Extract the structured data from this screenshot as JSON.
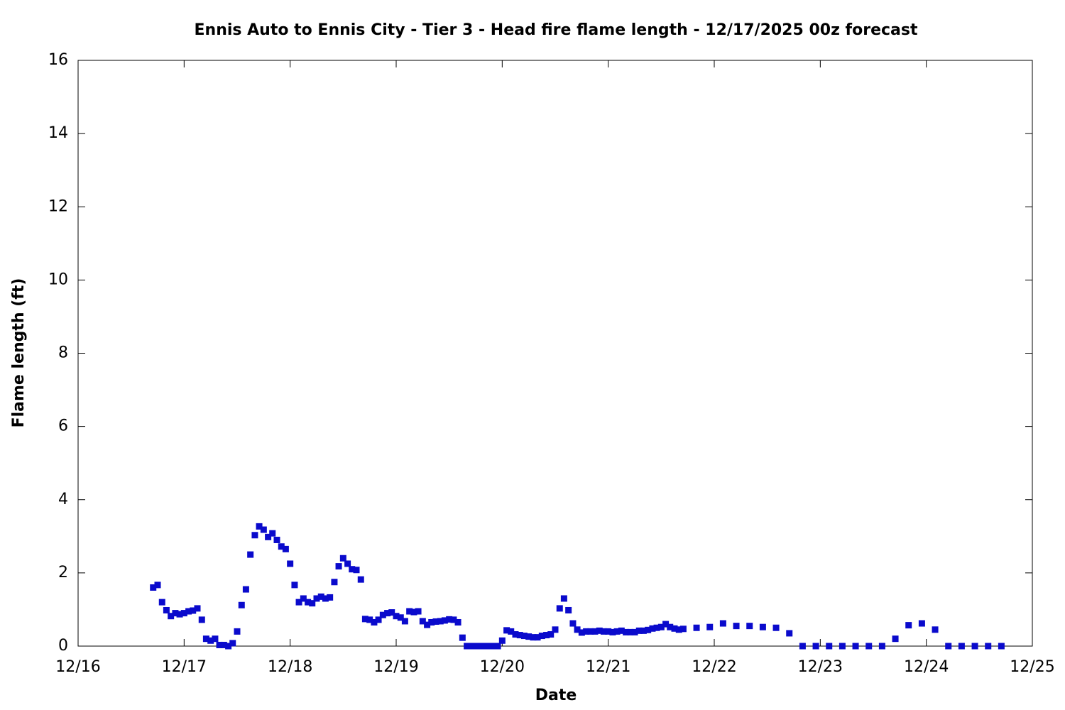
{
  "chart_data": {
    "type": "scatter",
    "title": "Ennis Auto to Ennis City - Tier 3 - Head fire flame length - 12/17/2025 00z forecast",
    "xlabel": "Date",
    "ylabel": "Flame length (ft)",
    "xlim": [
      0,
      9
    ],
    "ylim": [
      0,
      16
    ],
    "xticks": [
      {
        "value": 0,
        "label": "12/16"
      },
      {
        "value": 1,
        "label": "12/17"
      },
      {
        "value": 2,
        "label": "12/18"
      },
      {
        "value": 3,
        "label": "12/19"
      },
      {
        "value": 4,
        "label": "12/20"
      },
      {
        "value": 5,
        "label": "12/21"
      },
      {
        "value": 6,
        "label": "12/22"
      },
      {
        "value": 7,
        "label": "12/23"
      },
      {
        "value": 8,
        "label": "12/24"
      },
      {
        "value": 9,
        "label": "12/25"
      }
    ],
    "yticks": [
      0,
      2,
      4,
      6,
      8,
      10,
      12,
      14,
      16
    ],
    "grid": false,
    "series": [
      {
        "color": "#0a0acc",
        "x": [
          0.708,
          0.75,
          0.792,
          0.833,
          0.875,
          0.917,
          0.958,
          1,
          1.042,
          1.083,
          1.125,
          1.167,
          1.208,
          1.25,
          1.292,
          1.333,
          1.375,
          1.417,
          1.458,
          1.5,
          1.542,
          1.583,
          1.625,
          1.667,
          1.708,
          1.75,
          1.792,
          1.833,
          1.875,
          1.917,
          1.958,
          2,
          2.042,
          2.083,
          2.125,
          2.167,
          2.208,
          2.25,
          2.292,
          2.333,
          2.375,
          2.417,
          2.458,
          2.5,
          2.542,
          2.583,
          2.625,
          2.667,
          2.708,
          2.75,
          2.792,
          2.833,
          2.875,
          2.917,
          2.958,
          3,
          3.042,
          3.083,
          3.125,
          3.167,
          3.208,
          3.25,
          3.292,
          3.333,
          3.375,
          3.417,
          3.458,
          3.5,
          3.542,
          3.583,
          3.625,
          3.667,
          3.708,
          3.75,
          3.792,
          3.833,
          3.875,
          3.917,
          3.958,
          4,
          4.042,
          4.083,
          4.125,
          4.167,
          4.208,
          4.25,
          4.292,
          4.333,
          4.375,
          4.417,
          4.458,
          4.5,
          4.542,
          4.583,
          4.625,
          4.667,
          4.708,
          4.75,
          4.792,
          4.833,
          4.875,
          4.917,
          4.958,
          5,
          5.042,
          5.083,
          5.125,
          5.167,
          5.208,
          5.25,
          5.292,
          5.333,
          5.375,
          5.417,
          5.458,
          5.5,
          5.542,
          5.583,
          5.625,
          5.667,
          5.708,
          5.833,
          5.958,
          6.083,
          6.208,
          6.333,
          6.458,
          6.583,
          6.708,
          6.833,
          6.958,
          7.083,
          7.208,
          7.333,
          7.458,
          7.583,
          7.708,
          7.833,
          7.958,
          8.083,
          8.208,
          8.333,
          8.458,
          8.583,
          8.708
        ],
        "values": [
          1.6,
          1.67,
          1.2,
          0.98,
          0.82,
          0.9,
          0.87,
          0.9,
          0.95,
          0.97,
          1.03,
          0.72,
          0.2,
          0.15,
          0.2,
          0.03,
          0.03,
          0,
          0.08,
          0.4,
          1.12,
          1.55,
          2.5,
          3.03,
          3.27,
          3.18,
          2.98,
          3.08,
          2.9,
          2.72,
          2.65,
          2.25,
          1.67,
          1.2,
          1.3,
          1.2,
          1.17,
          1.3,
          1.35,
          1.3,
          1.33,
          1.75,
          2.18,
          2.4,
          2.25,
          2.1,
          2.08,
          1.82,
          0.74,
          0.72,
          0.65,
          0.72,
          0.85,
          0.9,
          0.92,
          0.82,
          0.78,
          0.68,
          0.95,
          0.93,
          0.95,
          0.68,
          0.58,
          0.65,
          0.67,
          0.68,
          0.7,
          0.73,
          0.72,
          0.65,
          0.23,
          0,
          0,
          0,
          0,
          0,
          0,
          0,
          0,
          0.15,
          0.43,
          0.4,
          0.32,
          0.3,
          0.28,
          0.26,
          0.24,
          0.24,
          0.28,
          0.3,
          0.32,
          0.45,
          1.03,
          1.3,
          0.98,
          0.62,
          0.45,
          0.37,
          0.4,
          0.4,
          0.4,
          0.42,
          0.4,
          0.4,
          0.38,
          0.4,
          0.42,
          0.38,
          0.38,
          0.38,
          0.42,
          0.42,
          0.44,
          0.48,
          0.5,
          0.52,
          0.6,
          0.52,
          0.48,
          0.45,
          0.47,
          0.5,
          0.52,
          0.62,
          0.55,
          0.55,
          0.52,
          0.5,
          0.35,
          0,
          0,
          0,
          0,
          0,
          0,
          0,
          0.2,
          0.57,
          0.62,
          0.45,
          0,
          0,
          0,
          0,
          0
        ]
      }
    ]
  }
}
